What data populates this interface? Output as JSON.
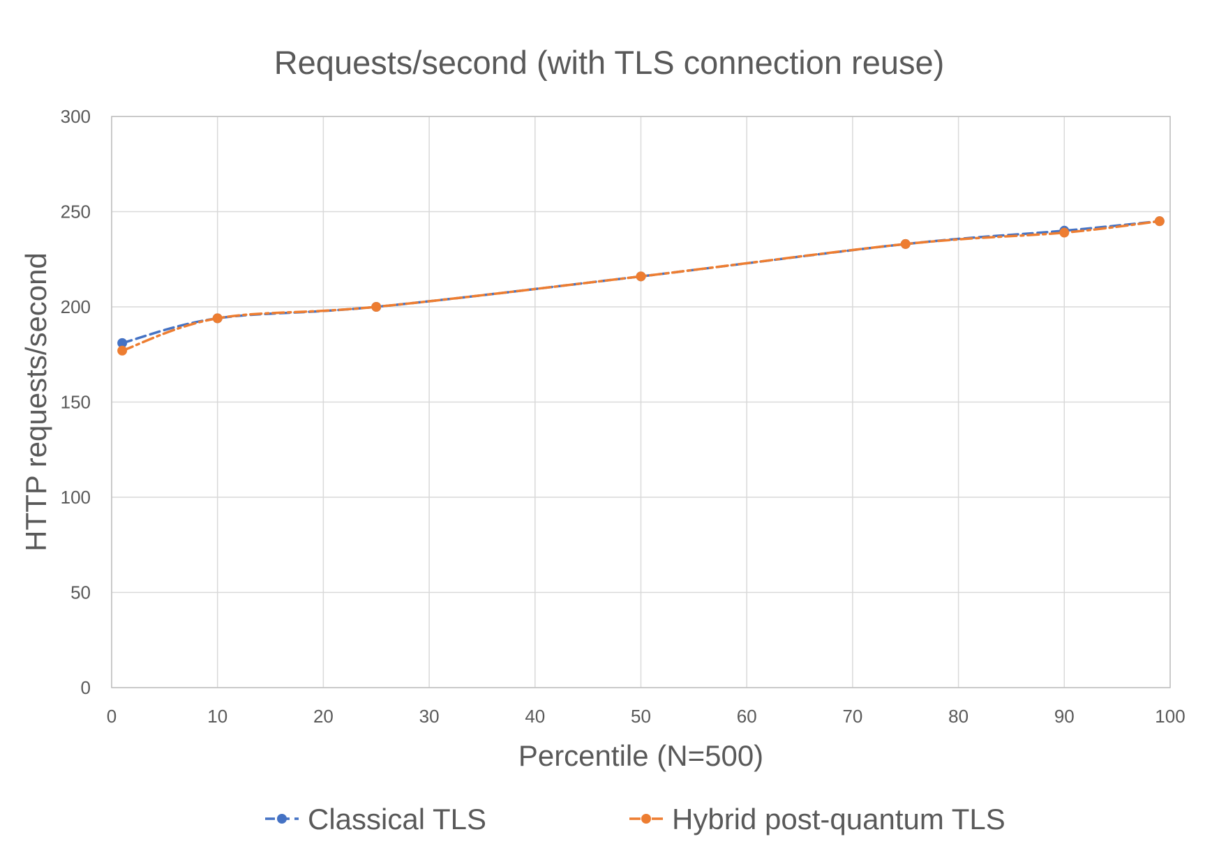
{
  "chart_data": {
    "type": "line",
    "title": "Requests/second (with TLS connection reuse)",
    "xlabel": "Percentile (N=500)",
    "ylabel": "HTTP requests/second",
    "xlim": [
      0,
      100
    ],
    "ylim": [
      0,
      300
    ],
    "x_ticks": [
      0,
      10,
      20,
      30,
      40,
      50,
      60,
      70,
      80,
      90,
      100
    ],
    "y_ticks": [
      0,
      50,
      100,
      150,
      200,
      250,
      300
    ],
    "grid": true,
    "legend_position": "bottom",
    "x": [
      1,
      10,
      25,
      50,
      75,
      90,
      99
    ],
    "series": [
      {
        "name": "Classical TLS",
        "color": "#4472C4",
        "values": [
          181,
          194,
          200,
          216,
          233,
          240,
          245
        ]
      },
      {
        "name": "Hybrid post-quantum TLS",
        "color": "#ED7D31",
        "values": [
          177,
          194,
          200,
          216,
          233,
          239,
          245
        ]
      }
    ]
  }
}
